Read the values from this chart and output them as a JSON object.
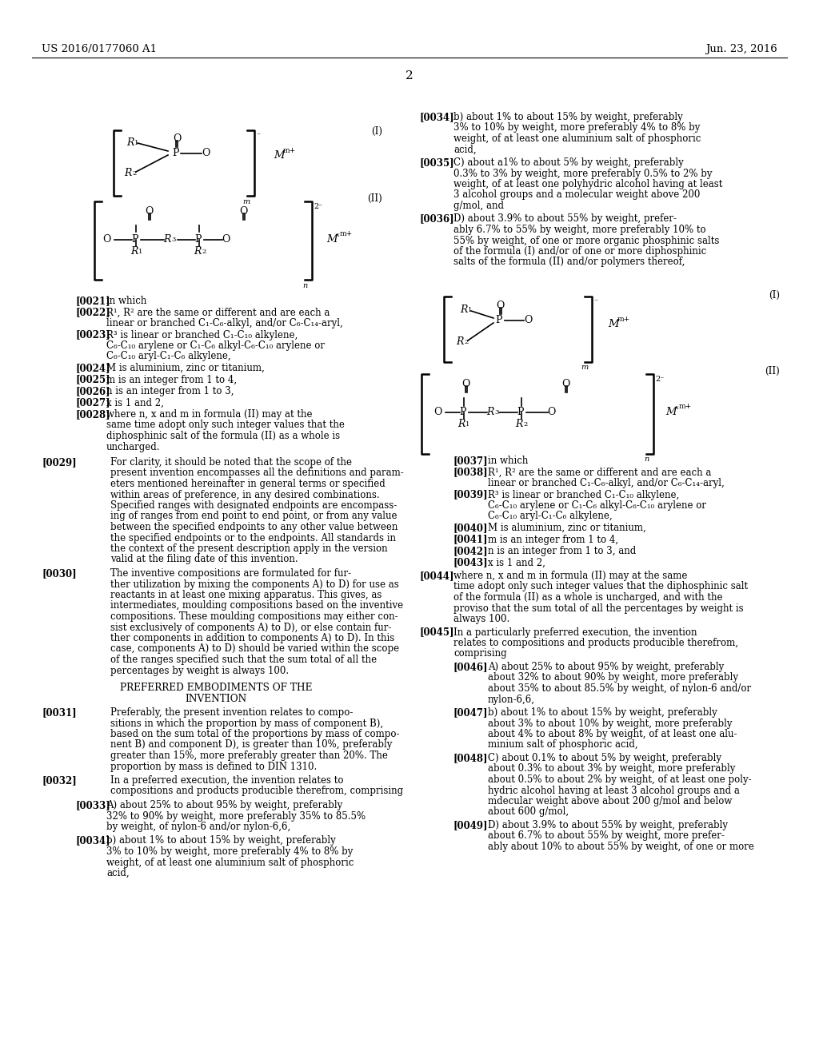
{
  "bg_color": "#ffffff",
  "header_left": "US 2016/0177060 A1",
  "header_right": "Jun. 23, 2016",
  "page_number": "2"
}
